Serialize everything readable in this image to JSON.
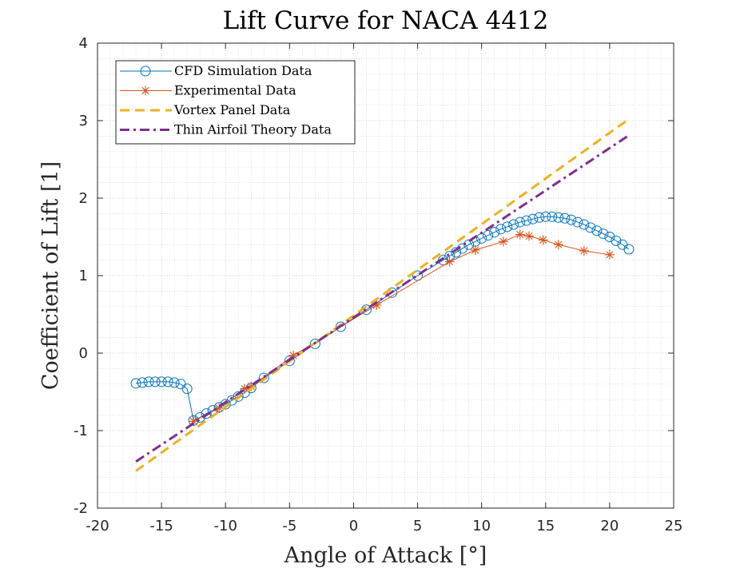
{
  "chart_data": {
    "type": "line",
    "title": "Lift Curve for NACA 4412",
    "xlabel": "Angle of Attack [°]",
    "ylabel": "Coefficient of Lift [1]",
    "xlim": [
      -20,
      25
    ],
    "ylim": [
      -2,
      4
    ],
    "xticks": [
      -20,
      -15,
      -10,
      -5,
      0,
      5,
      10,
      15,
      20,
      25
    ],
    "yticks": [
      -2,
      -1,
      0,
      1,
      2,
      3,
      4
    ],
    "xtick_labels": [
      "-20",
      "-15",
      "-10",
      "-5",
      "0",
      "5",
      "10",
      "15",
      "20",
      "25"
    ],
    "ytick_labels": [
      "-2",
      "-1",
      "0",
      "1",
      "2",
      "3",
      "4"
    ],
    "grid": true,
    "minor_grid": true,
    "legend_position": "top-left",
    "series": [
      {
        "name": "CFD Simulation Data",
        "color": "#0072BD",
        "marker": "circle",
        "line": "solid",
        "x": [
          -17,
          -16.5,
          -16,
          -15.5,
          -15,
          -14.5,
          -14,
          -13.5,
          -13,
          -12.5,
          -12,
          -11.5,
          -11,
          -10.5,
          -10,
          -9.5,
          -9,
          -8.5,
          -8,
          -7,
          -5,
          -3,
          -1,
          1,
          3,
          5,
          7,
          7.5,
          8,
          8.5,
          9,
          9.5,
          10,
          10.5,
          11,
          11.5,
          12,
          12.5,
          13,
          13.5,
          14,
          14.5,
          15,
          15.5,
          16,
          16.5,
          17,
          17.5,
          18,
          18.5,
          19,
          19.5,
          20,
          20.5,
          21,
          21.5
        ],
        "y": [
          -0.39,
          -0.38,
          -0.37,
          -0.37,
          -0.37,
          -0.37,
          -0.38,
          -0.4,
          -0.46,
          -0.87,
          -0.83,
          -0.78,
          -0.74,
          -0.7,
          -0.66,
          -0.61,
          -0.56,
          -0.51,
          -0.45,
          -0.32,
          -0.1,
          0.12,
          0.34,
          0.56,
          0.78,
          1.0,
          1.2,
          1.25,
          1.3,
          1.35,
          1.4,
          1.44,
          1.48,
          1.52,
          1.56,
          1.6,
          1.63,
          1.66,
          1.69,
          1.71,
          1.73,
          1.75,
          1.76,
          1.76,
          1.75,
          1.74,
          1.72,
          1.69,
          1.66,
          1.62,
          1.58,
          1.54,
          1.5,
          1.45,
          1.4,
          1.34
        ]
      },
      {
        "name": "Experimental Data",
        "color": "#D95319",
        "marker": "asterisk",
        "line": "solid",
        "x": [
          -12.5,
          -10.5,
          -8.5,
          -8,
          -4.7,
          1.8,
          7.5,
          9.5,
          11.7,
          13,
          13.7,
          14.8,
          16,
          18,
          20
        ],
        "y": [
          -0.88,
          -0.71,
          -0.46,
          -0.43,
          -0.03,
          0.62,
          1.18,
          1.33,
          1.44,
          1.53,
          1.51,
          1.46,
          1.4,
          1.32,
          1.27
        ]
      },
      {
        "name": "Vortex Panel Data",
        "color": "#EDB120",
        "marker": "none",
        "line": "dashed",
        "x": [
          -17,
          21.5
        ],
        "y": [
          -1.52,
          3.02
        ]
      },
      {
        "name": "Thin Airfoil Theory Data",
        "color": "#7E2F8E",
        "marker": "none",
        "line": "dashdot",
        "x": [
          -17,
          21.5
        ],
        "y": [
          -1.4,
          2.81
        ]
      }
    ]
  }
}
